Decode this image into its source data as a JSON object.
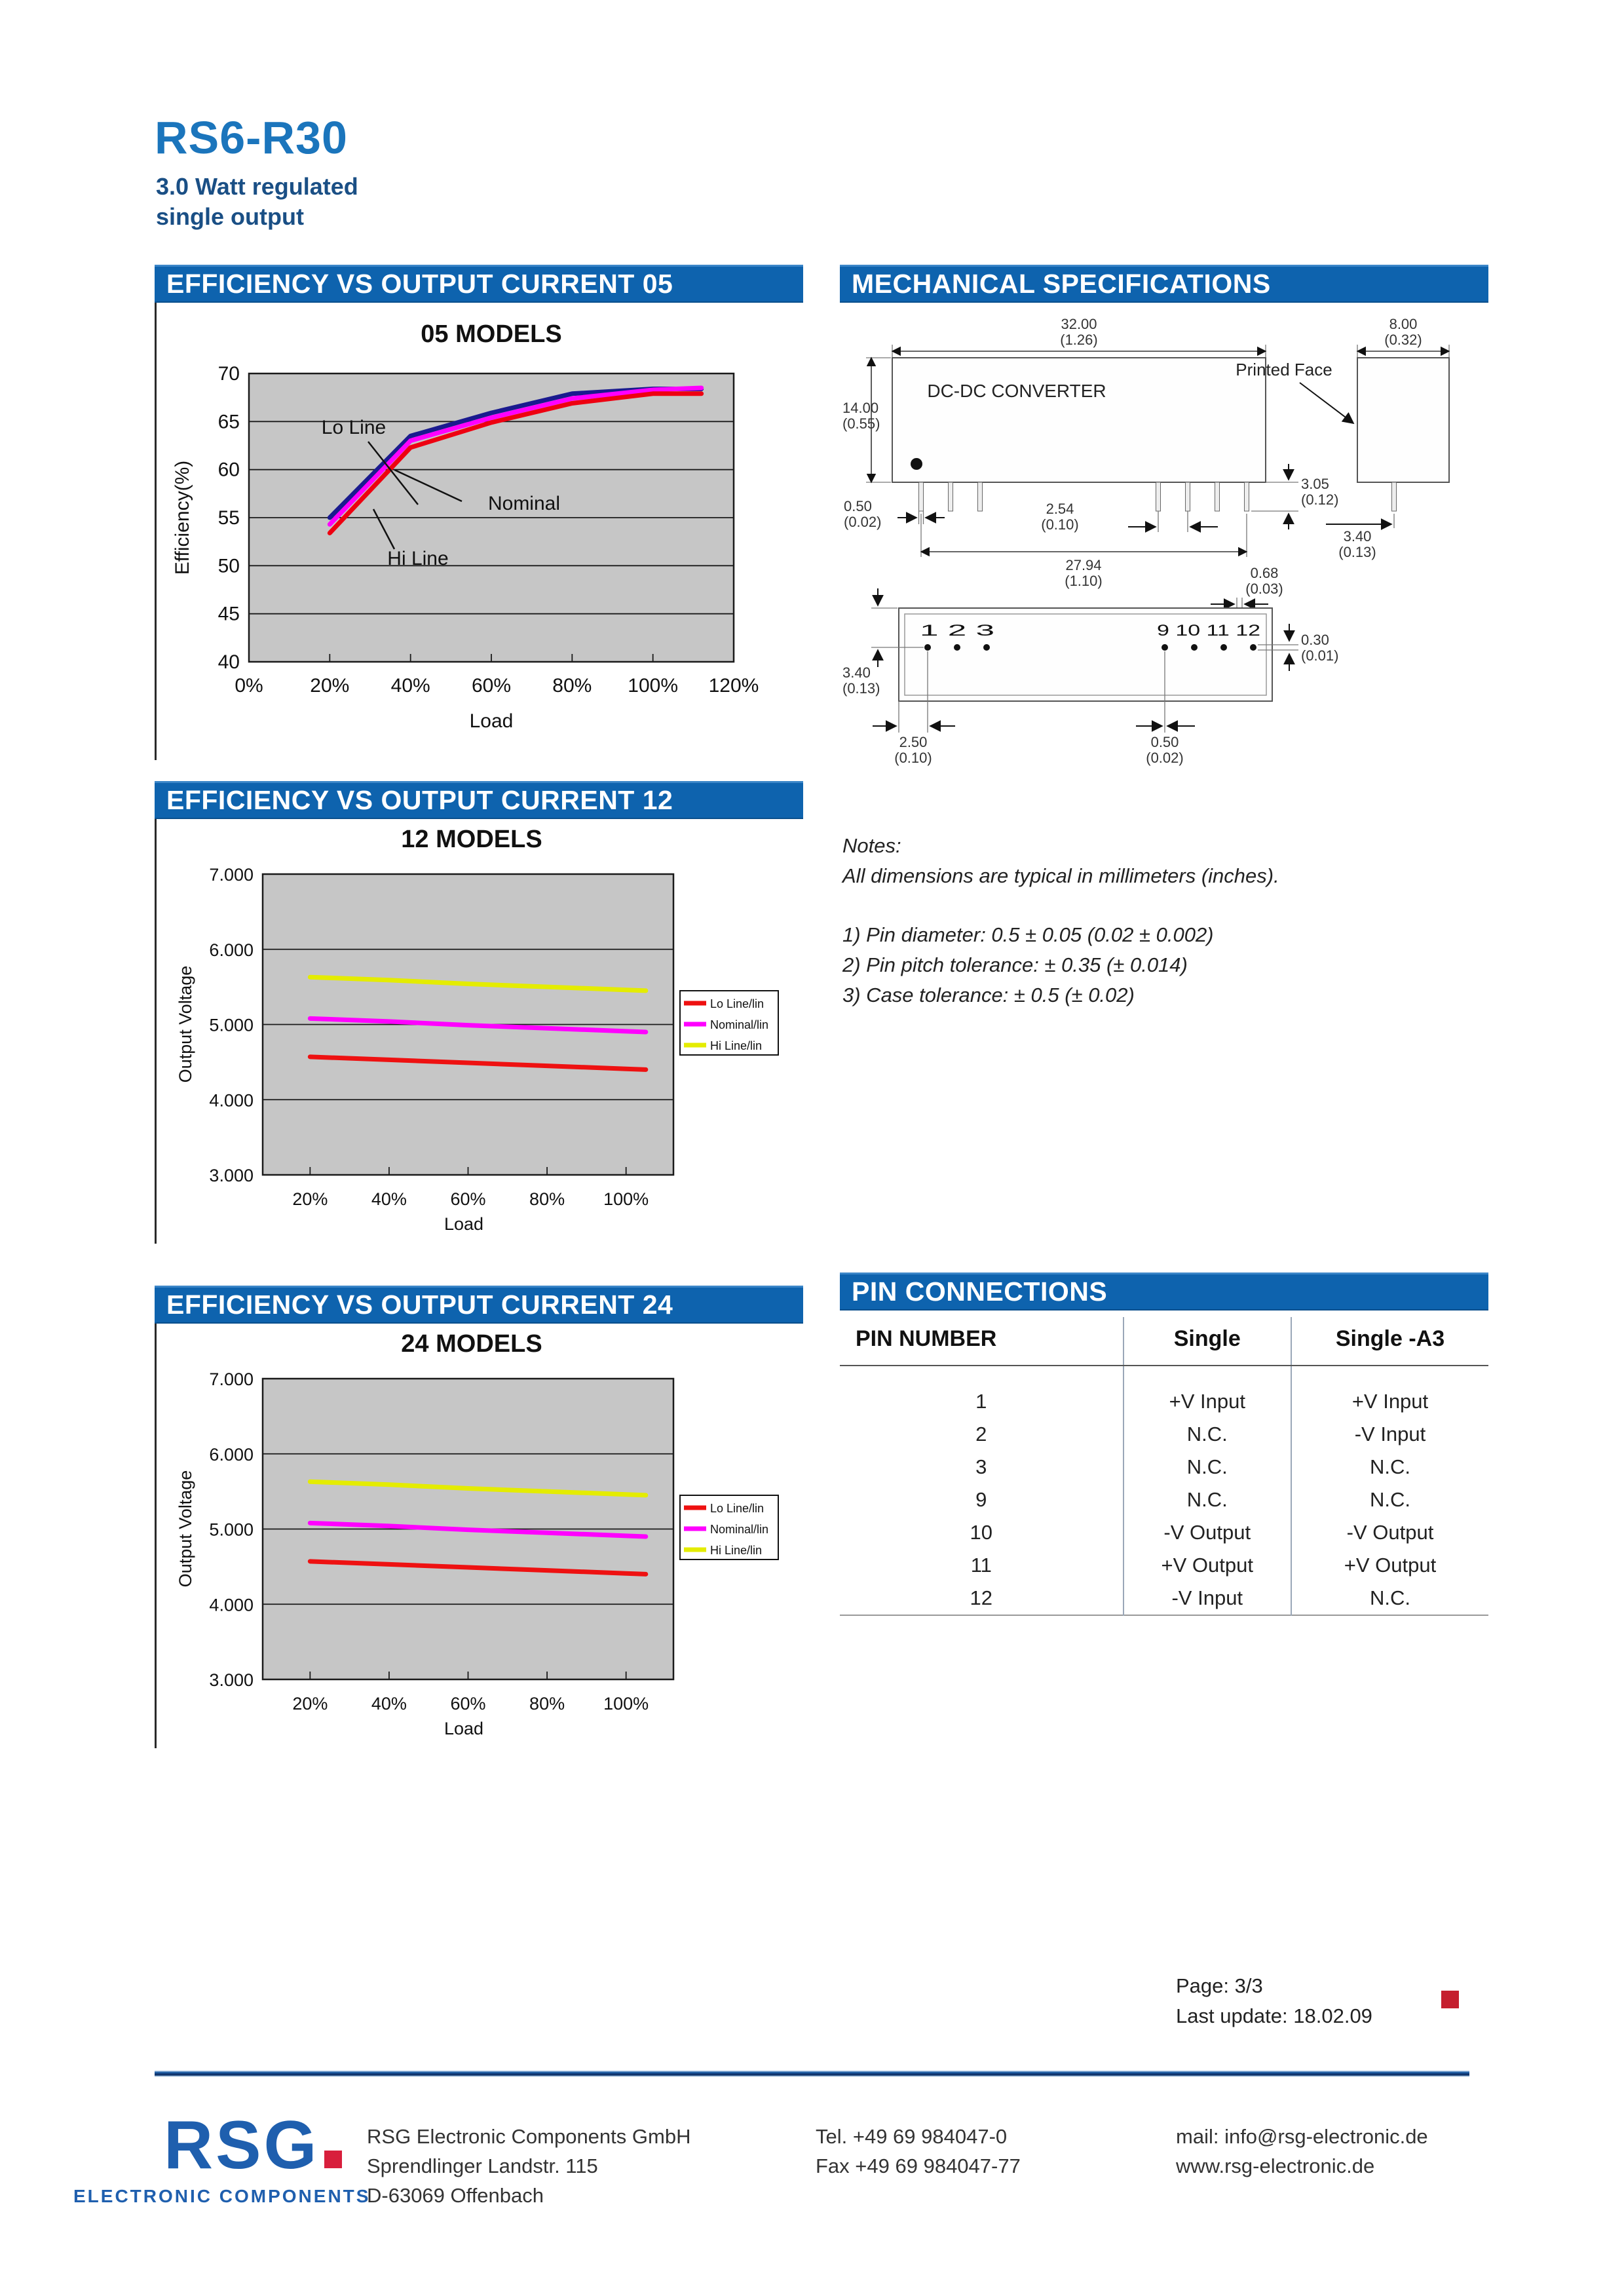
{
  "page": {
    "title": "RS6-R30",
    "subtitle1": "3.0 Watt regulated",
    "subtitle2": "single output",
    "page_info": "Page: 3/3",
    "last_update": "Last update: 18.02.09"
  },
  "colors": {
    "header_bar": "#0e63ae",
    "accent_red": "#c51f2f",
    "chart_bg": "#c6c6c6",
    "title_blue": "#1b75bc"
  },
  "section_headers": {
    "eff05": "EFFICIENCY VS OUTPUT CURRENT 05",
    "mech": "MECHANICAL SPECIFICATIONS",
    "eff12": "EFFICIENCY VS OUTPUT CURRENT 12",
    "eff24": "EFFICIENCY VS OUTPUT CURRENT 24",
    "pins": "PIN CONNECTIONS"
  },
  "chart_data": [
    {
      "id": "05",
      "type": "line",
      "title": "05 MODELS",
      "xlabel": "Load",
      "ylabel": "Efficiency(%)",
      "ylim": [
        40,
        70
      ],
      "yticks": [
        40,
        45,
        50,
        55,
        60,
        65,
        70
      ],
      "ytick_labels": [
        "40",
        "45",
        "50",
        "55",
        "60",
        "65",
        "70"
      ],
      "xticks": [
        0,
        20,
        40,
        60,
        80,
        100,
        120
      ],
      "xtick_labels": [
        "0%",
        "20%",
        "40%",
        "60%",
        "80%",
        "100%",
        "120%"
      ],
      "grid": "horizontal",
      "legend_position": "none",
      "x": [
        20,
        40,
        60,
        80,
        100,
        112
      ],
      "series": [
        {
          "name": "Lo Line",
          "color": "#1a1a8f",
          "values": [
            55.0,
            63.5,
            65.9,
            67.9,
            68.4,
            68.4
          ]
        },
        {
          "name": "Nominal",
          "color": "#ff00ff",
          "values": [
            54.3,
            63.0,
            65.4,
            67.4,
            68.3,
            68.5
          ]
        },
        {
          "name": "Hi Line",
          "color": "#ee0011",
          "values": [
            53.4,
            62.3,
            64.9,
            66.9,
            67.9,
            67.9
          ]
        }
      ],
      "annotations": [
        "Lo Line",
        "Nominal",
        "Hi Line"
      ]
    },
    {
      "id": "12",
      "type": "line",
      "title": "12 MODELS",
      "xlabel": "Load",
      "ylabel": "Output Voltage",
      "ylim": [
        3.0,
        7.0
      ],
      "yticks": [
        3,
        4,
        5,
        6,
        7
      ],
      "ytick_labels": [
        "3.000",
        "4.000",
        "5.000",
        "6.000",
        "7.000"
      ],
      "xticks": [
        20,
        40,
        60,
        80,
        100
      ],
      "xtick_labels": [
        "20%",
        "40%",
        "60%",
        "80%",
        "100%"
      ],
      "grid": "horizontal",
      "legend_position": "right",
      "x": [
        20,
        40,
        60,
        80,
        100,
        105
      ],
      "series": [
        {
          "name": "Lo Line/lin",
          "color": "#ee1111",
          "values": [
            4.57,
            4.53,
            4.49,
            4.45,
            4.41,
            4.4
          ]
        },
        {
          "name": "Nominal/lin",
          "color": "#ff00ff",
          "values": [
            5.08,
            5.04,
            4.99,
            4.95,
            4.91,
            4.9
          ]
        },
        {
          "name": "Hi Line/lin",
          "color": "#e4ec00",
          "values": [
            5.63,
            5.59,
            5.54,
            5.5,
            5.46,
            5.45
          ]
        }
      ]
    },
    {
      "id": "24",
      "type": "line",
      "title": "24 MODELS",
      "xlabel": "Load",
      "ylabel": "Output Voltage",
      "ylim": [
        3.0,
        7.0
      ],
      "yticks": [
        3,
        4,
        5,
        6,
        7
      ],
      "ytick_labels": [
        "3.000",
        "4.000",
        "5.000",
        "6.000",
        "7.000"
      ],
      "xticks": [
        20,
        40,
        60,
        80,
        100
      ],
      "xtick_labels": [
        "20%",
        "40%",
        "60%",
        "80%",
        "100%"
      ],
      "grid": "horizontal",
      "legend_position": "right",
      "x": [
        20,
        40,
        60,
        80,
        100,
        105
      ],
      "series": [
        {
          "name": "Lo Line/lin",
          "color": "#ee1111",
          "values": [
            4.57,
            4.53,
            4.49,
            4.45,
            4.41,
            4.4
          ]
        },
        {
          "name": "Nominal/lin",
          "color": "#ff00ff",
          "values": [
            5.08,
            5.04,
            4.99,
            4.95,
            4.91,
            4.9
          ]
        },
        {
          "name": "Hi Line/lin",
          "color": "#e4ec00",
          "values": [
            5.63,
            5.59,
            5.54,
            5.5,
            5.46,
            5.45
          ]
        }
      ]
    }
  ],
  "mech": {
    "front_label": "DC-DC CONVERTER",
    "printed_face": "Printed Face",
    "pins_left": "1 2 3",
    "pins_right": "9 10 11 12",
    "dims": {
      "front_width_mm": "32.00",
      "front_width_in": "(1.26)",
      "front_height_mm": "14.00",
      "front_height_in": "(0.55)",
      "pin_dia_mm": "0.50",
      "pin_dia_in": "(0.02)",
      "pin_pitch_mm": "2.54",
      "pin_pitch_in": "(0.10)",
      "pin_len_mm": "3.05",
      "pin_len_in": "(0.12)",
      "pin_span_mm": "27.94",
      "pin_span_in": "(1.10)",
      "side_width_mm": "8.00",
      "side_width_in": "(0.32)",
      "side_pin_off_mm": "3.40",
      "side_pin_off_in": "(0.13)",
      "pin_thick_mm": "0.68",
      "pin_thick_in": "(0.03)",
      "bottom_row_off_mm": "3.40",
      "bottom_row_off_in": "(0.13)",
      "pin_width_mm": "0.30",
      "pin_width_in": "(0.01)",
      "bottom_edge_off_mm": "2.50",
      "bottom_edge_off_in": "(0.10)",
      "bottom_pin_dia_mm": "0.50",
      "bottom_pin_dia_in": "(0.02)"
    }
  },
  "notes": {
    "title": "Notes:",
    "line1": "All dimensions are typical in millimeters (inches).",
    "item1": "1) Pin diameter: 0.5 ± 0.05 (0.02 ± 0.002)",
    "item2": "2) Pin pitch tolerance: ± 0.35 (± 0.014)",
    "item3": "3) Case tolerance: ± 0.5 (± 0.02)"
  },
  "pin_table": {
    "headers": [
      "PIN NUMBER",
      "Single",
      "Single -A3"
    ],
    "rows": [
      [
        "1",
        "+V Input",
        "+V Input"
      ],
      [
        "2",
        "N.C.",
        "-V Input"
      ],
      [
        "3",
        "N.C.",
        "N.C."
      ],
      [
        "9",
        "N.C.",
        "N.C."
      ],
      [
        "10",
        "-V Output",
        "-V Output"
      ],
      [
        "11",
        "+V Output",
        "+V Output"
      ],
      [
        "12",
        "-V Input",
        "N.C."
      ]
    ]
  },
  "footer": {
    "logo_text": "RSG",
    "logo_sub": "ELECTRONIC COMPONENTS",
    "company": "RSG Electronic Components GmbH",
    "street": "Sprendlinger Landstr. 115",
    "city": "D-63069 Offenbach",
    "tel": "Tel. +49 69 984047-0",
    "fax": "Fax +49 69 984047-77",
    "mail": "mail: info@rsg-electronic.de",
    "web": "www.rsg-electronic.de"
  }
}
